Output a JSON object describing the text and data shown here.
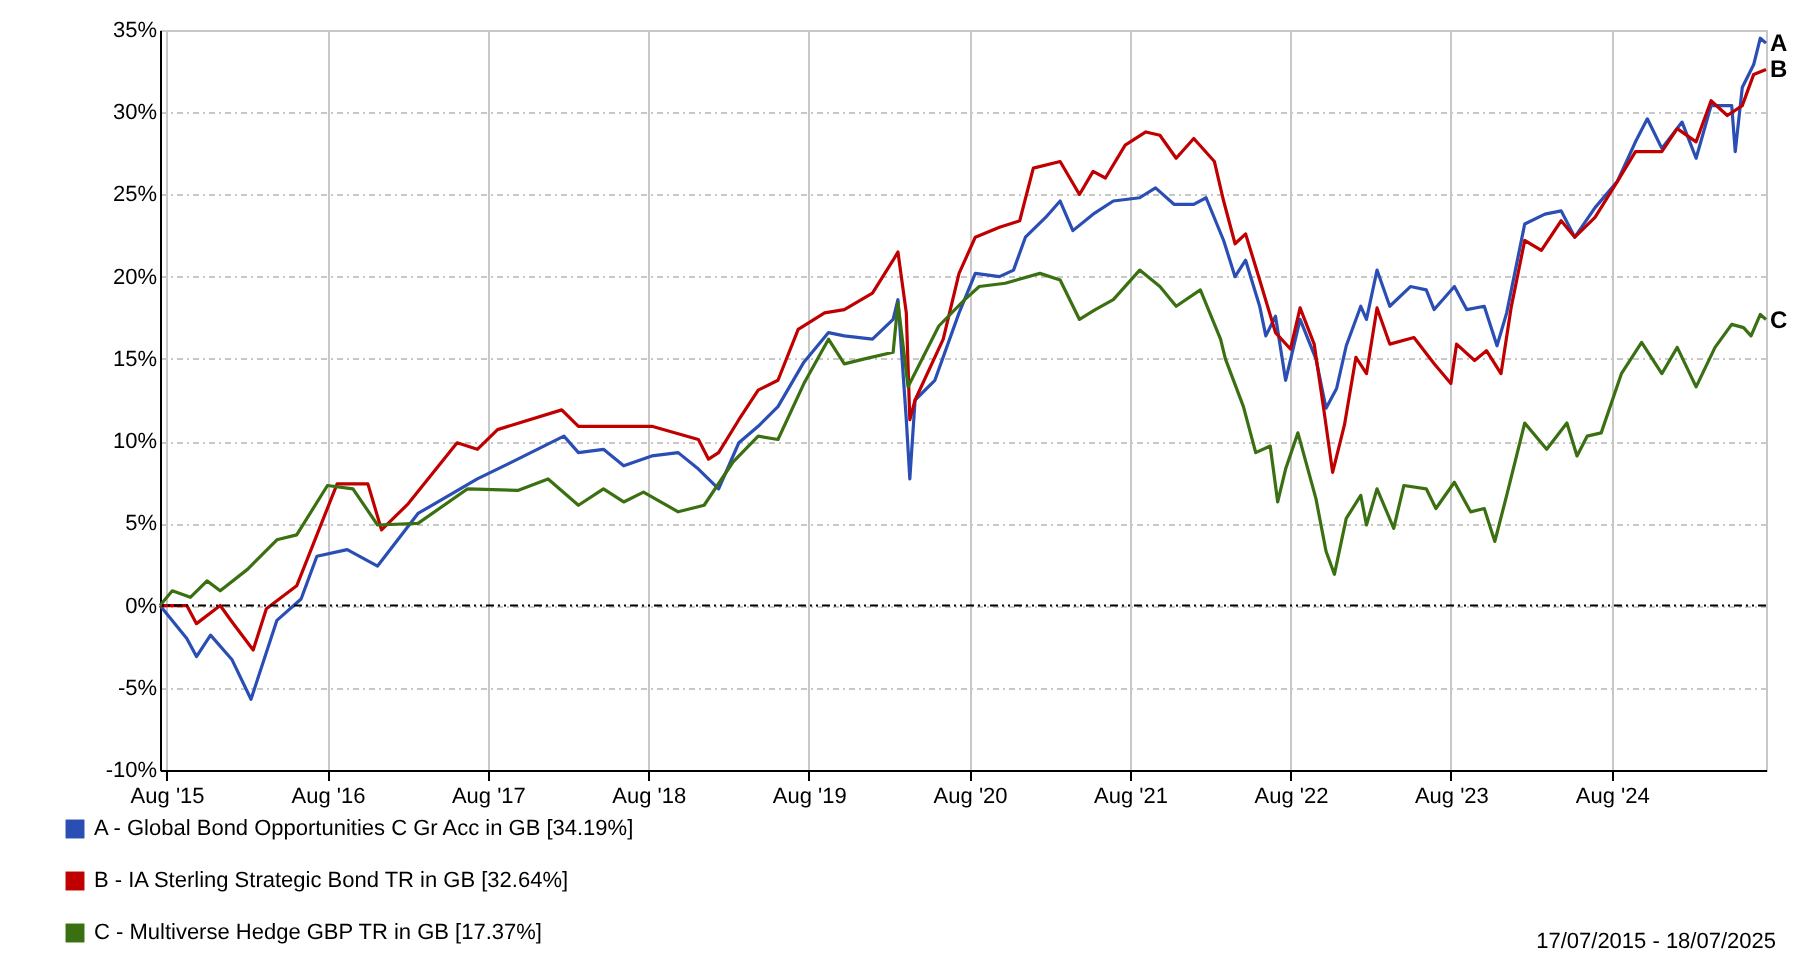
{
  "chart_data": {
    "type": "line",
    "line_style": "solid",
    "grid": true,
    "legend": "bottom left",
    "xlim": [
      "2015-07-17",
      "2025-07-18"
    ],
    "xticks": [
      {
        "value": "2015-08-01",
        "label": "Aug '15"
      },
      {
        "value": "2016-08-01",
        "label": "Aug '16"
      },
      {
        "value": "2017-08-01",
        "label": "Aug '17"
      },
      {
        "value": "2018-08-01",
        "label": "Aug '18"
      },
      {
        "value": "2019-08-01",
        "label": "Aug '19"
      },
      {
        "value": "2020-08-01",
        "label": "Aug '20"
      },
      {
        "value": "2021-08-01",
        "label": "Aug '21"
      },
      {
        "value": "2022-08-01",
        "label": "Aug '22"
      },
      {
        "value": "2023-08-01",
        "label": "Aug '23"
      },
      {
        "value": "2024-08-01",
        "label": "Aug '24"
      }
    ],
    "ylim": [
      -10,
      35
    ],
    "yticks": [
      {
        "value": -10,
        "label": "-10%"
      },
      {
        "value": -5,
        "label": "-5%"
      },
      {
        "value": 0,
        "label": "0%"
      },
      {
        "value": 5,
        "label": "5%"
      },
      {
        "value": 10,
        "label": "10%"
      },
      {
        "value": 15,
        "label": "15%"
      },
      {
        "value": 20,
        "label": "20%"
      },
      {
        "value": 25,
        "label": "25%"
      },
      {
        "value": 30,
        "label": "30%"
      },
      {
        "value": 35,
        "label": "35%"
      }
    ],
    "ref_lines": [
      {
        "axis": "y",
        "value": 0,
        "color": "#000000",
        "line_style": "dashed"
      }
    ],
    "annotations": [
      {
        "text": "A",
        "x": "2025-07-18",
        "y": 34.19
      },
      {
        "text": "B",
        "x": "2025-07-18",
        "y": 32.64
      },
      {
        "text": "C",
        "x": "2025-07-18",
        "y": 17.37
      },
      "17/07/2015 - 18/07/2025"
    ],
    "series": [
      {
        "name": "A - Global Bond Opportunities C Gr Acc in GB [34.19%]",
        "color": "#2b4eb5",
        "x": [
          "2015-07-17",
          "2015-09-16",
          "2015-10-08",
          "2015-11-09",
          "2015-12-28",
          "2016-02-09",
          "2016-04-08",
          "2016-06-02",
          "2016-07-08",
          "2016-09-15",
          "2016-11-23",
          "2017-02-23",
          "2017-07-08",
          "2017-09-15",
          "2018-01-21",
          "2018-02-23",
          "2018-04-21",
          "2018-06-06",
          "2018-08-09",
          "2018-10-08",
          "2018-11-23",
          "2019-01-08",
          "2019-02-23",
          "2019-04-08",
          "2019-05-23",
          "2019-07-21",
          "2019-09-15",
          "2019-10-21",
          "2019-12-24",
          "2020-02-09",
          "2020-02-20",
          "2020-03-10",
          "2020-03-18",
          "2020-03-30",
          "2020-05-14",
          "2020-07-08",
          "2020-08-14",
          "2020-10-08",
          "2020-11-09",
          "2020-12-06",
          "2021-01-21",
          "2021-02-23",
          "2021-03-24",
          "2021-05-09",
          "2021-06-24",
          "2021-08-23",
          "2021-09-28",
          "2021-11-09",
          "2021-12-24",
          "2022-01-21",
          "2022-03-02",
          "2022-03-28",
          "2022-04-21",
          "2022-05-23",
          "2022-06-06",
          "2022-06-28",
          "2022-07-21",
          "2022-08-23",
          "2022-09-28",
          "2022-10-21",
          "2022-11-14",
          "2022-12-06",
          "2023-01-08",
          "2023-01-21",
          "2023-02-14",
          "2023-03-15",
          "2023-05-01",
          "2023-06-06",
          "2023-06-24",
          "2023-08-09",
          "2023-09-06",
          "2023-10-16",
          "2023-11-14",
          "2023-12-06",
          "2024-01-16",
          "2024-03-02",
          "2024-04-08",
          "2024-05-09",
          "2024-06-24",
          "2024-08-14",
          "2024-09-24",
          "2024-10-21",
          "2024-11-23",
          "2025-01-08",
          "2025-02-09",
          "2025-03-15",
          "2025-05-01",
          "2025-05-09",
          "2025-05-25",
          "2025-06-20",
          "2025-07-05",
          "2025-07-18"
        ],
        "values": [
          0,
          -2,
          -3.1,
          -1.8,
          -3.3,
          -5.7,
          -0.9,
          0.4,
          3,
          3.4,
          2.4,
          5.6,
          7.7,
          8.6,
          10.3,
          9.3,
          9.5,
          8.5,
          9.1,
          9.3,
          8.3,
          7.1,
          9.9,
          10.9,
          12.1,
          14.8,
          16.6,
          16.4,
          16.2,
          17.4,
          18.6,
          11.3,
          7.7,
          12.5,
          13.7,
          17.8,
          20.2,
          20,
          20.4,
          22.4,
          23.6,
          24.6,
          22.8,
          23.8,
          24.6,
          24.8,
          25.4,
          24.4,
          24.4,
          24.8,
          22.2,
          20,
          21,
          18.2,
          16.4,
          17.6,
          13.7,
          17.4,
          15,
          12,
          13.2,
          15.8,
          18.2,
          17.4,
          20.4,
          18.2,
          19.4,
          19.2,
          18,
          19.4,
          18,
          18.2,
          15.8,
          17.8,
          23.2,
          23.8,
          24,
          22.4,
          24.2,
          25.8,
          28.2,
          29.6,
          27.8,
          29.4,
          27.2,
          30.4,
          30.4,
          27.6,
          31.5,
          32.9,
          34.5,
          34.2
        ]
      },
      {
        "name": "B - IA Sterling Strategic Bond TR in GB [32.64%]",
        "color": "#c00000",
        "x": [
          "2015-07-17",
          "2015-09-16",
          "2015-10-08",
          "2015-12-01",
          "2015-12-28",
          "2016-02-14",
          "2016-03-15",
          "2016-05-23",
          "2016-07-08",
          "2016-08-23",
          "2016-11-01",
          "2016-12-02",
          "2017-02-01",
          "2017-05-23",
          "2017-07-08",
          "2017-08-23",
          "2018-01-16",
          "2018-02-23",
          "2018-08-09",
          "2018-11-23",
          "2018-12-16",
          "2019-01-08",
          "2019-02-23",
          "2019-04-08",
          "2019-05-23",
          "2019-07-08",
          "2019-09-06",
          "2019-10-21",
          "2019-12-24",
          "2020-02-09",
          "2020-02-20",
          "2020-03-10",
          "2020-03-18",
          "2020-03-30",
          "2020-06-02",
          "2020-07-08",
          "2020-08-14",
          "2020-10-08",
          "2020-11-23",
          "2020-12-24",
          "2021-02-23",
          "2021-04-08",
          "2021-05-09",
          "2021-06-06",
          "2021-07-21",
          "2021-09-06",
          "2021-10-08",
          "2021-11-14",
          "2021-12-24",
          "2022-02-09",
          "2022-03-02",
          "2022-03-28",
          "2022-04-21",
          "2022-05-23",
          "2022-06-28",
          "2022-08-01",
          "2022-08-23",
          "2022-09-24",
          "2022-10-16",
          "2022-11-05",
          "2022-12-02",
          "2022-12-28",
          "2023-01-21",
          "2023-02-14",
          "2023-03-15",
          "2023-05-09",
          "2023-06-24",
          "2023-08-01",
          "2023-08-14",
          "2023-09-24",
          "2023-10-21",
          "2023-11-23",
          "2023-12-16",
          "2024-01-16",
          "2024-02-23",
          "2024-04-08",
          "2024-05-09",
          "2024-06-24",
          "2024-08-14",
          "2024-09-24",
          "2024-11-23",
          "2024-12-28",
          "2025-02-09",
          "2025-03-15",
          "2025-04-21",
          "2025-05-25",
          "2025-06-20",
          "2025-07-18"
        ],
        "values": [
          0,
          0,
          -1.1,
          0,
          -1,
          -2.7,
          -0.2,
          1.2,
          4.3,
          7.4,
          7.4,
          4.6,
          6.2,
          9.9,
          9.5,
          10.7,
          11.9,
          10.9,
          10.9,
          10.1,
          8.9,
          9.3,
          11.3,
          13.1,
          13.7,
          16.8,
          17.8,
          18,
          19,
          21,
          21.5,
          17.8,
          11.3,
          12.5,
          16.2,
          20.2,
          22.4,
          23,
          23.4,
          26.6,
          27,
          25,
          26.4,
          26,
          28,
          28.8,
          28.6,
          27.2,
          28.4,
          27,
          24.6,
          22,
          22.6,
          19.8,
          16.6,
          15.6,
          18.1,
          15.9,
          11.9,
          8.1,
          11,
          15.1,
          14.1,
          18.1,
          15.9,
          16.3,
          14.7,
          13.5,
          15.9,
          14.9,
          15.5,
          14.1,
          18.1,
          22.2,
          21.6,
          23.4,
          22.4,
          23.6,
          25.8,
          27.6,
          27.6,
          29,
          28.2,
          30.7,
          29.8,
          30.4,
          32.3,
          32.6
        ]
      },
      {
        "name": "C - Multiverse Hedge GBP TR in GB [17.37%]",
        "color": "#3a7012",
        "x": [
          "2015-07-17",
          "2015-08-14",
          "2015-09-24",
          "2015-11-01",
          "2015-12-01",
          "2016-02-01",
          "2016-04-08",
          "2016-05-23",
          "2016-08-01",
          "2016-09-28",
          "2016-11-23",
          "2017-02-23",
          "2017-06-16",
          "2017-10-08",
          "2017-12-16",
          "2018-02-23",
          "2018-04-21",
          "2018-06-06",
          "2018-07-21",
          "2018-10-08",
          "2018-12-06",
          "2019-02-09",
          "2019-04-08",
          "2019-05-23",
          "2019-07-21",
          "2019-09-15",
          "2019-10-21",
          "2019-12-06",
          "2020-02-09",
          "2020-02-20",
          "2020-03-14",
          "2020-05-23",
          "2020-07-21",
          "2020-08-23",
          "2020-10-21",
          "2021-01-08",
          "2021-02-23",
          "2021-04-08",
          "2021-05-14",
          "2021-06-24",
          "2021-08-23",
          "2021-10-08",
          "2021-11-14",
          "2022-01-08",
          "2022-02-23",
          "2022-03-06",
          "2022-04-16",
          "2022-05-14",
          "2022-06-16",
          "2022-07-03",
          "2022-07-21",
          "2022-08-18",
          "2022-09-28",
          "2022-10-21",
          "2022-11-09",
          "2022-12-06",
          "2023-01-08",
          "2023-01-21",
          "2023-02-14",
          "2023-03-24",
          "2023-04-16",
          "2023-06-06",
          "2023-06-28",
          "2023-08-09",
          "2023-09-15",
          "2023-10-16",
          "2023-11-09",
          "2023-12-06",
          "2024-01-16",
          "2024-03-06",
          "2024-04-21",
          "2024-05-14",
          "2024-06-06",
          "2024-07-08",
          "2024-08-23",
          "2024-10-08",
          "2024-11-23",
          "2024-12-28",
          "2025-02-09",
          "2025-03-24",
          "2025-05-01",
          "2025-05-28",
          "2025-06-14",
          "2025-07-05",
          "2025-07-18"
        ],
        "values": [
          0,
          0.9,
          0.5,
          1.5,
          0.9,
          2.2,
          4,
          4.3,
          7.3,
          7.1,
          4.9,
          5,
          7.1,
          7,
          7.7,
          6.1,
          7.1,
          6.3,
          6.9,
          5.7,
          6.1,
          8.7,
          10.3,
          10.1,
          13.5,
          16.2,
          14.7,
          15,
          15.4,
          18.4,
          13.3,
          17,
          18.6,
          19.4,
          19.6,
          20.2,
          19.8,
          17.4,
          18,
          18.6,
          20.4,
          19.4,
          18.2,
          19.2,
          16.2,
          15,
          12.1,
          9.3,
          9.7,
          6.3,
          8.3,
          10.5,
          6.5,
          3.3,
          1.9,
          5.3,
          6.7,
          4.9,
          7.1,
          4.7,
          7.3,
          7.1,
          5.9,
          7.5,
          5.7,
          5.9,
          3.9,
          6.7,
          11.1,
          9.5,
          11.1,
          9.1,
          10.3,
          10.5,
          14.1,
          16,
          14.1,
          15.7,
          13.3,
          15.7,
          17.1,
          16.9,
          16.4,
          17.7,
          17.4
        ]
      }
    ]
  }
}
